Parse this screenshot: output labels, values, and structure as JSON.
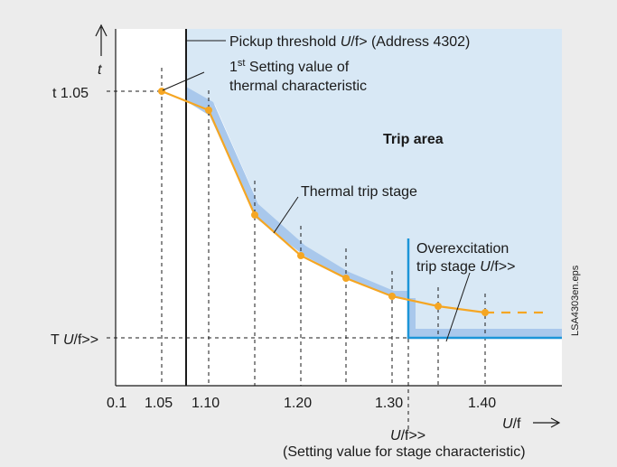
{
  "colors": {
    "background": "#ececec",
    "plot_background": "#ffffff",
    "trip_area_fill": "#d8e8f5",
    "band_fill": "#a9c8ec",
    "thermal_line": "#f5a623",
    "overexcitation_line": "#1c95d8",
    "axis": "#1a1a1a"
  },
  "axes": {
    "y_arrow_label": "t",
    "y_tick_t105": "t 1.05",
    "y_tick_TU_prefix": "T ",
    "y_tick_TU_italic": "U",
    "y_tick_TU_suffix": "/f>>",
    "x_label_italic": "U",
    "x_label_suffix": "/f",
    "x_arrow": "⟶"
  },
  "annotations": {
    "pickup_prefix": "Pickup threshold ",
    "pickup_italic": "U",
    "pickup_suffix": "/f> (Address 4302)",
    "first_setting_sup": "st",
    "first_setting_line1_prefix": "1",
    "first_setting_line1_suffix": " Setting value of",
    "first_setting_line2": "thermal characteristic",
    "trip_area": "Trip area",
    "thermal_trip_stage": "Thermal trip stage",
    "overexc_line1": "Overexcitation",
    "overexc_line2_prefix": "trip stage ",
    "overexc_line2_italic": "U",
    "overexc_line2_suffix": "/f>>",
    "uf_bottom_italic": "U",
    "uf_bottom_suffix": "/f>>",
    "setting_value_note": "(Setting value for stage characteristic)",
    "file_label": "LSA4303en.eps"
  },
  "chart_data": {
    "type": "line",
    "x_ticks": [
      "0.1",
      "1.05",
      "1.10",
      "1.20",
      "1.30",
      "1.40"
    ],
    "series": [
      {
        "name": "Thermal trip stage",
        "x": [
          1.05,
          1.1,
          1.15,
          1.2,
          1.25,
          1.3,
          1.35,
          1.4
        ],
        "y_norm": [
          1.0,
          0.92,
          0.52,
          0.38,
          0.3,
          0.23,
          0.18,
          0.15
        ]
      }
    ],
    "pickup_threshold_x": 1.075,
    "stage_threshold_x": 1.32
  }
}
